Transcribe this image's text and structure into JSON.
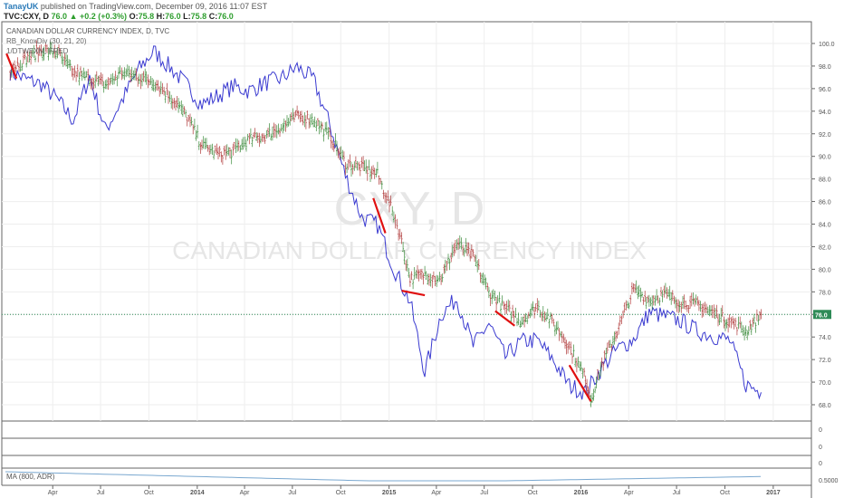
{
  "header": {
    "username": "TanayUK",
    "published_text": "published on TradingView.com, December 09, 2016 11:07 EST",
    "symbol": "TVC:CXY, D",
    "last": "76.0",
    "arrow": "▲",
    "change": "+0.2 (+0.3%)",
    "o_label": "O:",
    "o_val": "75.8",
    "h_label": "H:",
    "h_val": "76.0",
    "l_label": "L:",
    "l_val": "75.8",
    "c_label": "C:",
    "c_val": "76.0"
  },
  "legend": {
    "title": "CANADIAN DOLLAR CURRENCY INDEX, D, TVC",
    "indicator": "RB_KnoxDiv (30, 21, 20)",
    "overlay": "1/DTWEXM, FRED"
  },
  "watermark": {
    "line1": "CXY, D",
    "line2": "CANADIAN DOLLAR CURRENCY INDEX"
  },
  "price_badge": "76.0",
  "colors": {
    "price_bars": "#b04040",
    "overlay_line": "#3a3ad0",
    "divergence": "#e01010",
    "ma_line": "#7aa8d0",
    "last_price": "#2e8b57"
  },
  "chart_data": {
    "type": "line",
    "title": "CANADIAN DOLLAR CURRENCY INDEX, D, TVC",
    "ylim": [
      67,
      101
    ],
    "y_ticks": [
      "100.0",
      "98.0",
      "96.0",
      "94.0",
      "92.0",
      "90.0",
      "88.0",
      "86.0",
      "84.0",
      "82.0",
      "80.0",
      "78.0",
      "76.0",
      "74.0",
      "72.0",
      "70.0",
      "68.0"
    ],
    "x_ticks": [
      "Apr",
      "Jul",
      "Oct",
      "2014",
      "Apr",
      "Jul",
      "Oct",
      "2015",
      "Apr",
      "Jul",
      "Oct",
      "2016",
      "Apr",
      "Jul",
      "Oct",
      "2017"
    ],
    "x_tick_dates": [
      "2013-04-01",
      "2013-07-01",
      "2013-10-01",
      "2014-01-01",
      "2014-04-01",
      "2014-07-01",
      "2014-10-01",
      "2015-01-01",
      "2015-04-01",
      "2015-07-01",
      "2015-10-01",
      "2016-01-01",
      "2016-04-01",
      "2016-07-01",
      "2016-10-01",
      "2017-01-01"
    ],
    "last_price": 76.0,
    "series": [
      {
        "name": "CANADIAN DOLLAR CURRENCY INDEX",
        "x": [
          "2013-01-10",
          "2013-02-10",
          "2013-03-10",
          "2013-04-10",
          "2013-05-10",
          "2013-06-10",
          "2013-07-10",
          "2013-08-10",
          "2013-09-10",
          "2013-10-10",
          "2013-11-10",
          "2013-12-10",
          "2014-01-10",
          "2014-02-10",
          "2014-03-10",
          "2014-04-10",
          "2014-05-10",
          "2014-06-10",
          "2014-07-10",
          "2014-08-10",
          "2014-09-10",
          "2014-10-10",
          "2014-11-10",
          "2014-12-10",
          "2015-01-10",
          "2015-01-25",
          "2015-02-10",
          "2015-03-10",
          "2015-04-10",
          "2015-05-10",
          "2015-06-10",
          "2015-07-10",
          "2015-08-10",
          "2015-09-10",
          "2015-10-10",
          "2015-11-10",
          "2015-12-10",
          "2016-01-10",
          "2016-01-20",
          "2016-02-10",
          "2016-03-10",
          "2016-04-10",
          "2016-05-10",
          "2016-06-10",
          "2016-07-10",
          "2016-08-10",
          "2016-09-10",
          "2016-10-10",
          "2016-11-10",
          "2016-12-09"
        ],
        "values": [
          97.8,
          98.6,
          99.4,
          99.2,
          97.4,
          96.9,
          96.3,
          97.4,
          97.1,
          96.6,
          95.3,
          93.7,
          91.0,
          90.2,
          90.4,
          91.5,
          91.8,
          92.6,
          93.5,
          93.3,
          91.8,
          89.4,
          89.0,
          88.4,
          84.8,
          82.4,
          79.2,
          79.5,
          79.2,
          82.3,
          81.1,
          78.0,
          76.5,
          75.4,
          76.7,
          75.2,
          73.2,
          70.3,
          68.4,
          71.6,
          74.5,
          78.2,
          77.3,
          77.8,
          77.0,
          76.9,
          76.1,
          75.4,
          74.5,
          76.0
        ]
      },
      {
        "name": "1/DTWEXM, FRED",
        "x": [
          "2013-01-10",
          "2013-02-10",
          "2013-03-10",
          "2013-04-10",
          "2013-05-10",
          "2013-06-10",
          "2013-07-10",
          "2013-08-10",
          "2013-09-10",
          "2013-10-10",
          "2013-11-10",
          "2013-12-10",
          "2014-01-10",
          "2014-02-10",
          "2014-03-10",
          "2014-04-10",
          "2014-05-10",
          "2014-06-10",
          "2014-07-10",
          "2014-08-10",
          "2014-09-10",
          "2014-10-10",
          "2014-11-10",
          "2014-12-10",
          "2015-01-10",
          "2015-02-10",
          "2015-03-10",
          "2015-04-10",
          "2015-05-10",
          "2015-06-10",
          "2015-07-10",
          "2015-08-10",
          "2015-09-10",
          "2015-10-10",
          "2015-11-10",
          "2015-12-10",
          "2016-01-10",
          "2016-02-10",
          "2016-03-10",
          "2016-04-10",
          "2016-05-10",
          "2016-06-10",
          "2016-07-10",
          "2016-08-10",
          "2016-09-10",
          "2016-10-10",
          "2016-11-10",
          "2016-12-09"
        ],
        "values": [
          97.5,
          96.8,
          96.4,
          95.0,
          93.2,
          97.1,
          92.3,
          94.9,
          97.6,
          99.3,
          97.9,
          96.4,
          94.6,
          95.4,
          96.2,
          95.8,
          96.5,
          96.9,
          97.9,
          96.8,
          92.8,
          88.3,
          84.6,
          83.9,
          80.1,
          77.1,
          70.9,
          76.0,
          77.4,
          73.2,
          75.2,
          72.2,
          73.6,
          73.7,
          71.9,
          69.7,
          69.1,
          71.3,
          72.9,
          73.8,
          76.2,
          75.8,
          75.4,
          74.5,
          74.1,
          73.7,
          69.8,
          69.1
        ]
      }
    ],
    "divergence_segments": [
      {
        "x": [
          "2013-01-03",
          "2013-01-22"
        ],
        "y": [
          99.1,
          96.9
        ]
      },
      {
        "x": [
          "2014-12-02",
          "2014-12-25"
        ],
        "y": [
          86.3,
          83.2
        ]
      },
      {
        "x": [
          "2015-01-25",
          "2015-03-10"
        ],
        "y": [
          78.1,
          77.7
        ]
      },
      {
        "x": [
          "2015-07-22",
          "2015-08-28"
        ],
        "y": [
          76.3,
          75.0
        ]
      },
      {
        "x": [
          "2015-12-10",
          "2016-01-20"
        ],
        "y": [
          71.5,
          68.3
        ]
      }
    ],
    "sub_panel": {
      "name": "MA (800, ADR)",
      "y_ticks": [
        "0",
        "0",
        "0",
        "0.5000"
      ]
    }
  }
}
